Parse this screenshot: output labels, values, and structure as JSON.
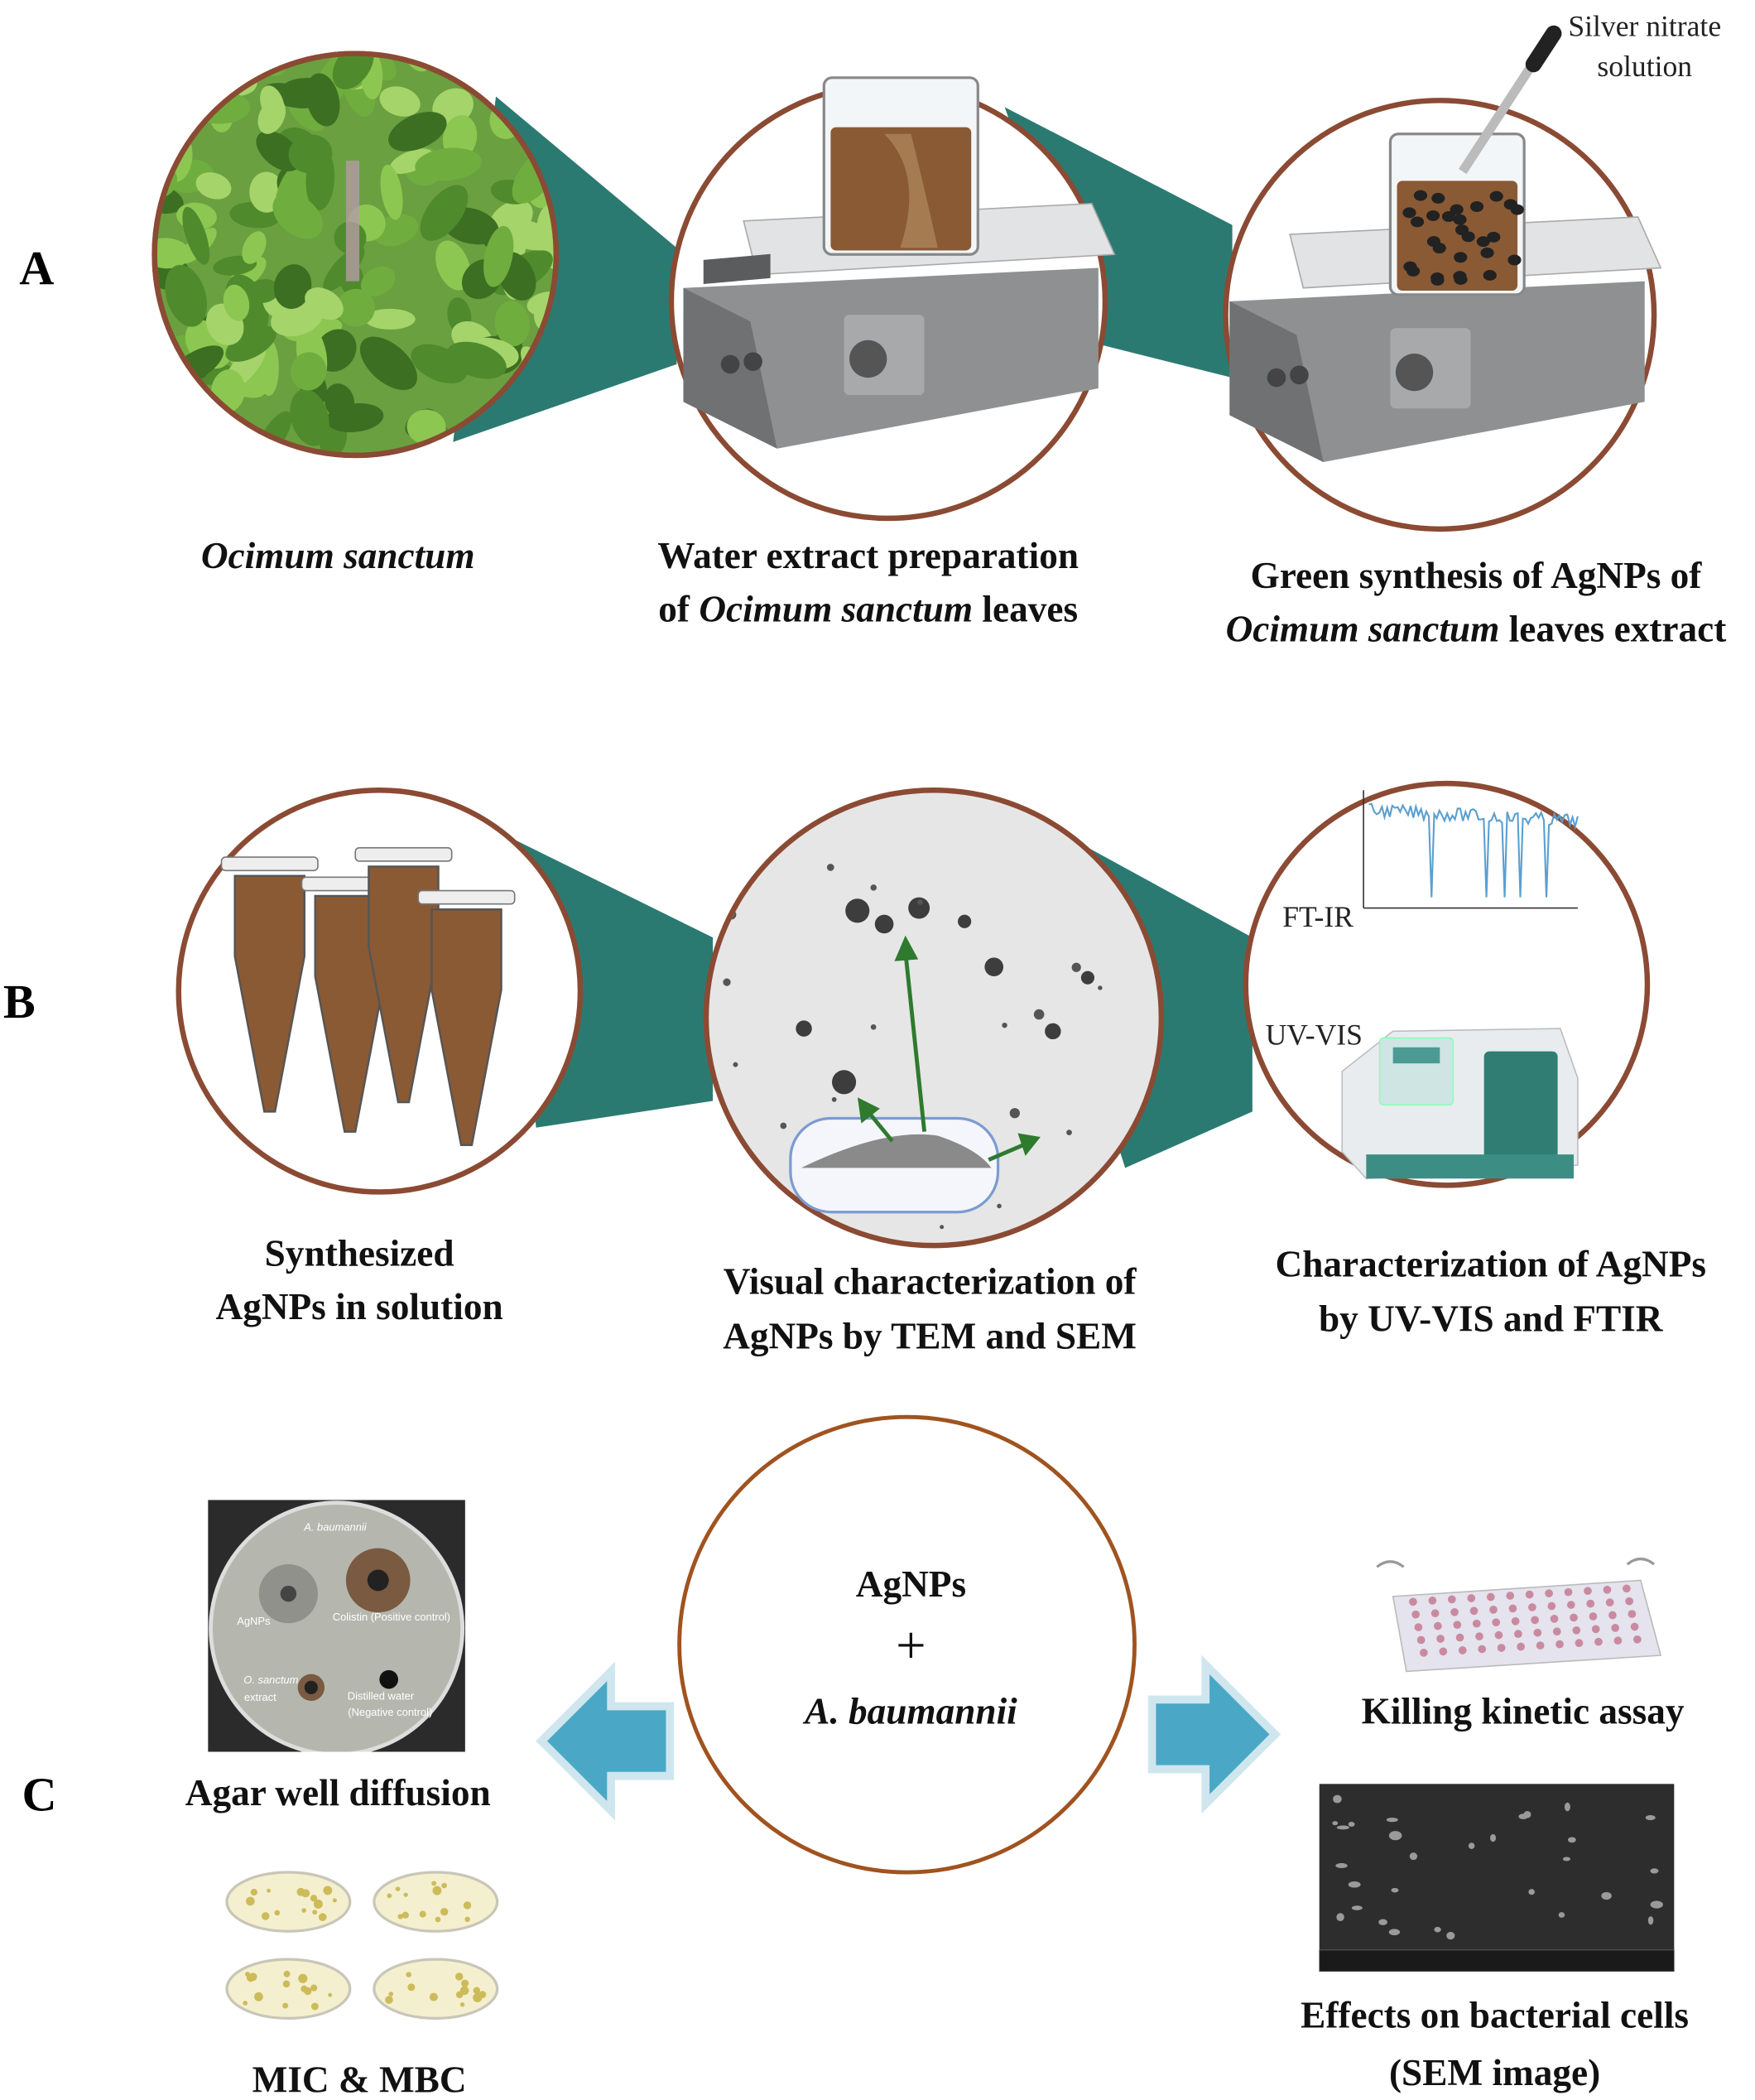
{
  "panel_a": {
    "label": "A",
    "plant_caption": "Ocimum sanctum",
    "extract_caption": {
      "line1": "Water extract preparation",
      "line2": [
        "of",
        "Ocimum sanctum",
        "leaves"
      ]
    },
    "synthesis_caption": {
      "line1": "Green synthesis of AgNPs of",
      "line2": [
        "Ocimum sanctum",
        "leaves extract"
      ]
    },
    "dropper_label": [
      "Silver nitrate",
      "solution"
    ]
  },
  "panel_b": {
    "label": "B",
    "tubes_caption": [
      "Synthesized",
      "AgNPs in solution"
    ],
    "microscopy_caption": [
      "Visual characterization of",
      "AgNPs by TEM and SEM"
    ],
    "spectroscopy_caption": [
      "Characterization of AgNPs",
      "by UV-VIS and FTIR"
    ],
    "ftir_label": "FT-IR",
    "uvvis_label": "UV-VIS"
  },
  "panel_c": {
    "label": "C",
    "center": [
      "AgNPs",
      "+",
      "A. baumannii"
    ],
    "agar_caption": "Agar well diffusion",
    "dish_labels": {
      "organism": "A. baumannii",
      "agnps": "AgNPs",
      "colistin": "Colistin (Positive control)",
      "extract": [
        "O. sanctum",
        "extract"
      ],
      "water": [
        "Distilled water",
        "(Negative control)"
      ]
    },
    "mic_caption": "MIC & MBC",
    "kinetic_caption": "Killing kinetic assay",
    "sem_caption": [
      "Effects on bacterial cells",
      "(SEM image)"
    ]
  }
}
